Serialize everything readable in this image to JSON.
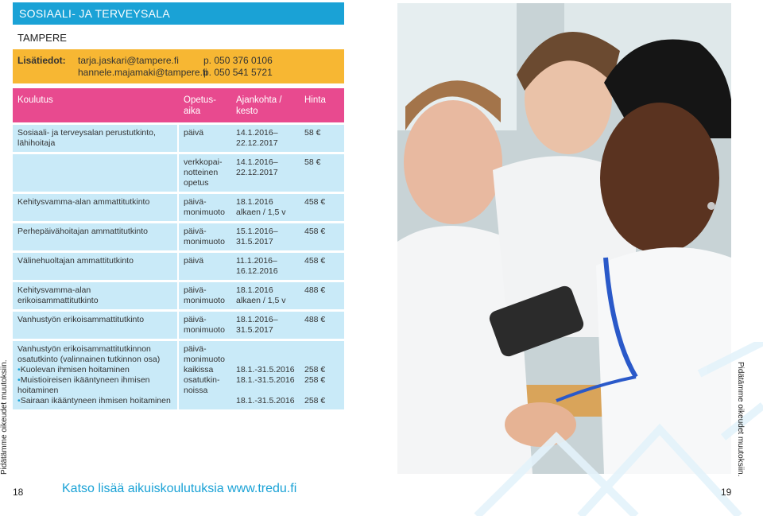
{
  "header": {
    "title": "SOSIAALI- JA TERVEYSALA"
  },
  "city": "TAMPERE",
  "contact": {
    "label": "Lisätiedot:",
    "emails": [
      "tarja.jaskari@tampere.fi",
      "hannele.majamaki@tampere.fi"
    ],
    "phones": [
      "p. 050 376 0106",
      "p. 050 541 5721"
    ]
  },
  "table": {
    "headers": [
      "Koulutus",
      "Opetus-\naika",
      "Ajankohta /\nkesto",
      "Hinta"
    ],
    "rows": [
      {
        "course": "Sosiaali- ja terveysalan perustutkinto, lähihoitaja",
        "mode": "päivä",
        "time": "14.1.2016–\n22.12.2017",
        "price": "58 €"
      },
      {
        "course": "",
        "mode": "verkkopai-\nnotteinen\nopetus",
        "time": "14.1.2016–\n22.12.2017",
        "price": "58 €"
      },
      {
        "course": "Kehitysvamma-alan ammattitutkinto",
        "mode": "päivä-\nmonimuoto",
        "time": "18.1.2016\nalkaen / 1,5 v",
        "price": "458 €"
      },
      {
        "course": "Perhepäivähoitajan ammattitutkinto",
        "mode": "päivä-\nmonimuoto",
        "time": "15.1.2016–\n31.5.2017",
        "price": "458 €"
      },
      {
        "course": "Välinehuoltajan ammattitutkinto",
        "mode": "päivä",
        "time": "11.1.2016–\n16.12.2016",
        "price": "458 €"
      },
      {
        "course": "Kehitysvamma-alan\nerikoisammattitutkinto",
        "mode": "päivä-\nmonimuoto",
        "time": "18.1.2016\nalkaen / 1,5 v",
        "price": "488 €"
      },
      {
        "course": "Vanhustyön erikoisammattitutkinto",
        "mode": "päivä-\nmonimuoto",
        "time": "18.1.2016–\n31.5.2017",
        "price": "488 €"
      }
    ],
    "last_row": {
      "course_title": "Vanhustyön erikoisammattitutkinnon osatutkinto (valinnainen tutkinnon osa)",
      "items": [
        "Kuolevan ihmisen hoitaminen",
        "Muistioireisen ikääntyneen ihmisen hoitaminen",
        "Sairaan ikääntyneen ihmisen hoitaminen"
      ],
      "mode": "päivä-\nmonimuoto\nkaikissa\nosatutkin-\nnoissa",
      "times": [
        "18.1.-31.5.2016",
        "18.1.-31.5.2016",
        "18.1.-31.5.2016"
      ],
      "prices": [
        "258 €",
        "258 €",
        "258 €"
      ]
    }
  },
  "side_note": "Pidätämme oikeudet muutoksiin.",
  "footer": {
    "link_text": "Katso lisää aikuiskoulutuksia www.tredu.fi",
    "page_left": "18",
    "page_right": "19"
  },
  "colors": {
    "header_blue": "#1aa2d6",
    "contact_orange": "#f7b733",
    "table_header_pink": "#e84a8f",
    "cell_blue": "#c9eaf8"
  }
}
